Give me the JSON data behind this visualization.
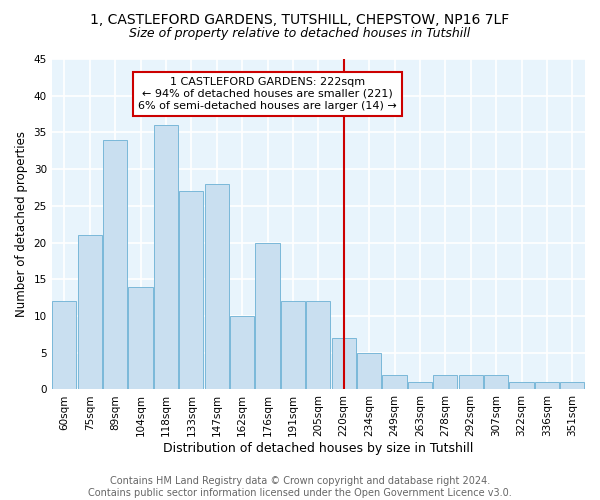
{
  "title1": "1, CASTLEFORD GARDENS, TUTSHILL, CHEPSTOW, NP16 7LF",
  "title2": "Size of property relative to detached houses in Tutshill",
  "xlabel": "Distribution of detached houses by size in Tutshill",
  "ylabel": "Number of detached properties",
  "categories": [
    "60sqm",
    "75sqm",
    "89sqm",
    "104sqm",
    "118sqm",
    "133sqm",
    "147sqm",
    "162sqm",
    "176sqm",
    "191sqm",
    "205sqm",
    "220sqm",
    "234sqm",
    "249sqm",
    "263sqm",
    "278sqm",
    "292sqm",
    "307sqm",
    "322sqm",
    "336sqm",
    "351sqm"
  ],
  "values": [
    12,
    21,
    34,
    14,
    36,
    27,
    28,
    10,
    20,
    12,
    12,
    7,
    5,
    2,
    1,
    2,
    2,
    2,
    1,
    1,
    1
  ],
  "bar_color": "#c9dff0",
  "bar_edge_color": "#7ab8d9",
  "vline_x_index": 11,
  "vline_color": "#cc0000",
  "annotation_line1": "1 CASTLEFORD GARDENS: 222sqm",
  "annotation_line2": "← 94% of detached houses are smaller (221)",
  "annotation_line3": "6% of semi-detached houses are larger (14) →",
  "annotation_box_color": "#cc0000",
  "ylim": [
    0,
    45
  ],
  "yticks": [
    0,
    5,
    10,
    15,
    20,
    25,
    30,
    35,
    40,
    45
  ],
  "footnote": "Contains HM Land Registry data © Crown copyright and database right 2024.\nContains public sector information licensed under the Open Government Licence v3.0.",
  "bg_color": "#e8f4fc",
  "grid_color": "#ffffff",
  "title1_fontsize": 10,
  "title2_fontsize": 9,
  "annotation_fontsize": 8,
  "tick_fontsize": 7.5,
  "ylabel_fontsize": 8.5,
  "xlabel_fontsize": 9,
  "footnote_fontsize": 7
}
